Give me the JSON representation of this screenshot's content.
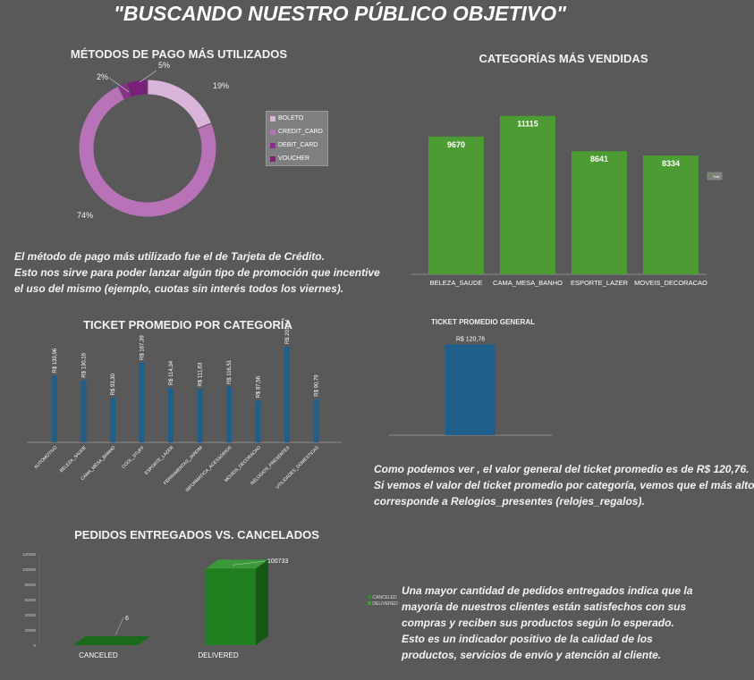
{
  "title": "\"BUSCANDO NUESTRO PÚBLICO OBJETIVO\"",
  "chart_data": [
    {
      "id": "payment",
      "type": "pie",
      "title": "MÉTODOS DE PAGO MÁS UTILIZADOS",
      "categories": [
        "BOLETO",
        "CREDIT_CARD",
        "DEBIT_CARD",
        "VOUCHER"
      ],
      "values": [
        19,
        74,
        2,
        5
      ],
      "labels": [
        "19%",
        "74%",
        "2%",
        "5%"
      ],
      "colors": [
        "#d8b4d8",
        "#b873b8",
        "#8c2e8c",
        "#7a1f7a"
      ],
      "legend": "right"
    },
    {
      "id": "categories",
      "type": "bar",
      "title": "CATEGORÍAS MÁS VENDIDAS",
      "categories": [
        "BELEZA_SAUDE",
        "CAMA_MESA_BANHO",
        "ESPORTE_LAZER",
        "MOVEIS_DECORACAO"
      ],
      "values": [
        9670,
        11115,
        8641,
        8334
      ],
      "ylim": [
        0,
        12500
      ],
      "color": "#4c9c33",
      "legend_label": "Total",
      "legend": "right"
    },
    {
      "id": "ticket_cat",
      "type": "bar",
      "title": "TICKET PROMEDIO POR CATEGORÍA",
      "categories": [
        "AUTOMOTIVO",
        "BELEZA_SAUDE",
        "CAMA_MESA_BANHO",
        "COOL_STUFF",
        "ESPORTE_LAZER",
        "FERRAMENTAS_JARDIM",
        "INFORMATICA_ACESSORIOS",
        "MOVEIS_DECORACAO",
        "RELOGIOS_PRESENTES",
        "UTILIDADES_DOMESTICAS"
      ],
      "values": [
        139.96,
        130.16,
        93.3,
        167.39,
        114.34,
        111.63,
        116.51,
        87.56,
        201.14,
        90.79
      ],
      "value_labels": [
        "R$ 139,96",
        "R$ 130,16",
        "R$ 93,30",
        "R$ 167,39",
        "R$ 114,34",
        "R$ 111,63",
        "R$ 116,51",
        "R$ 87,56",
        "R$ 201,14",
        "R$ 90,79"
      ],
      "ylim": [
        0,
        220
      ],
      "color": "#1f5f8b"
    },
    {
      "id": "ticket_general",
      "type": "bar",
      "title": "TICKET PROMEDIO GENERAL",
      "values": [
        120.76
      ],
      "value_labels": [
        "R$ 120,76"
      ],
      "ylim": [
        0,
        125
      ],
      "color": "#1f5f8b"
    },
    {
      "id": "orders",
      "type": "bar",
      "title": "PEDIDOS ENTREGADOS VS. CANCELADOS",
      "categories": [
        "CANCELED",
        "DELIVERED"
      ],
      "values": [
        6,
        100733
      ],
      "yticks": [
        0,
        20000,
        40000,
        60000,
        80000,
        100000,
        120000
      ],
      "ylim": [
        0,
        120000
      ],
      "legend_labels": [
        "CANCELED",
        "DELIVERED"
      ],
      "color": "#1f7a1f"
    }
  ],
  "texts": {
    "payment_lines": [
      "El método de pago más utilizado fue el de Tarjeta de Crédito.",
      "Esto nos sirve para poder lanzar algún tipo de promoción que incentive",
      "el uso del mismo (ejemplo, cuotas sin interés todos los viernes)."
    ],
    "ticket_lines": [
      "Como podemos ver , el valor general del ticket promedio es de R$ 120,76.",
      "Si vemos el valor del ticket promedio por categoría, vemos que el más alto",
      "corresponde a Relogios_presentes (relojes_regalos)."
    ],
    "orders_lines": [
      "Una mayor cantidad de pedidos entregados indica que la",
      "mayoría de nuestros clientes están satisfechos con sus",
      "compras y reciben sus productos según lo esperado.",
      "Esto es un indicador positivo de la calidad de los",
      "productos, servicios de envío y atención al cliente."
    ]
  }
}
